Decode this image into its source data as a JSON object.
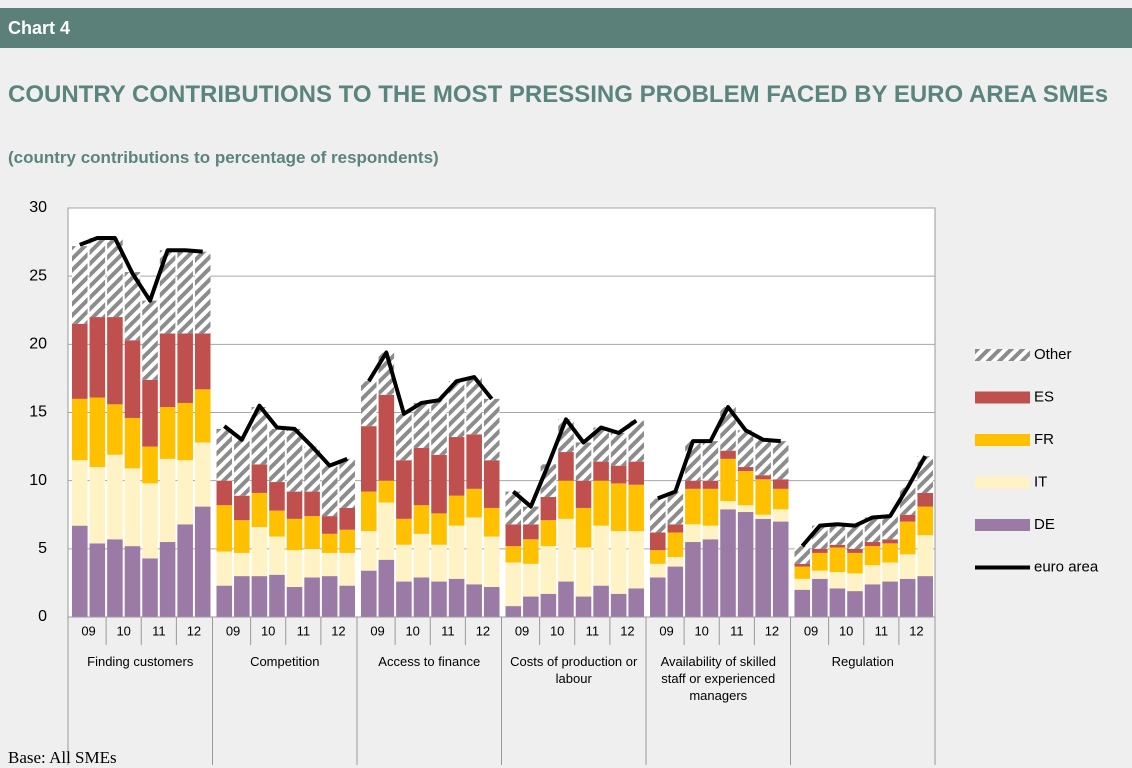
{
  "header": "Chart 4",
  "footnote": "Base: All SMEs",
  "chart_data": {
    "type": "bar",
    "stacked": true,
    "title": "COUNTRY CONTRIBUTIONS TO THE MOST PRESSING PROBLEM FACED BY EURO AREA SMEs",
    "subtitle": "(country contributions to percentage of respondents)",
    "ylim": [
      0,
      30
    ],
    "yticks": [
      0,
      5,
      10,
      15,
      20,
      25,
      30
    ],
    "grid": true,
    "periods": [
      "09",
      "10",
      "11",
      "12"
    ],
    "series": [
      {
        "name": "DE",
        "color": "#9b7ba5"
      },
      {
        "name": "IT",
        "color": "#fff2c4"
      },
      {
        "name": "FR",
        "color": "#ffc000"
      },
      {
        "name": "ES",
        "color": "#c0504d"
      },
      {
        "name": "Other",
        "color": "#8c8c8c",
        "hatch": true
      }
    ],
    "line": {
      "name": "euro area",
      "color": "#000000"
    },
    "groups": [
      {
        "label": "Finding customers",
        "values": [
          [
            6.7,
            5.4,
            5.7,
            5.2,
            4.3,
            5.5,
            6.8,
            8.1
          ],
          [
            4.8,
            5.6,
            6.2,
            5.7,
            5.5,
            6.1,
            4.7,
            4.7
          ],
          [
            4.5,
            5.1,
            3.7,
            3.7,
            2.7,
            3.8,
            4.2,
            3.9
          ],
          [
            5.5,
            5.9,
            6.4,
            5.7,
            4.9,
            5.4,
            5.1,
            4.1
          ],
          [
            5.7,
            5.8,
            5.8,
            5.0,
            5.8,
            6.1,
            6.1,
            6.0
          ]
        ],
        "line": [
          27.3,
          27.8,
          27.8,
          25.2,
          23.2,
          26.9,
          26.9,
          26.8
        ]
      },
      {
        "label": "Competition",
        "values": [
          [
            2.3,
            3.0,
            3.0,
            3.1,
            2.2,
            2.9,
            3.0,
            2.3
          ],
          [
            2.5,
            1.7,
            3.6,
            2.8,
            2.7,
            2.1,
            1.7,
            2.4
          ],
          [
            3.4,
            2.4,
            2.5,
            1.9,
            2.3,
            2.4,
            1.4,
            1.7
          ],
          [
            1.8,
            1.8,
            2.1,
            2.1,
            2.0,
            1.8,
            1.3,
            1.6
          ],
          [
            3.8,
            4.1,
            4.2,
            3.9,
            4.6,
            3.3,
            3.7,
            3.6
          ]
        ],
        "line": [
          14.0,
          13.0,
          15.5,
          13.9,
          13.8,
          12.5,
          11.1,
          11.6
        ]
      },
      {
        "label": "Access to finance",
        "values": [
          [
            3.4,
            4.2,
            2.6,
            2.9,
            2.6,
            2.8,
            2.4,
            2.2
          ],
          [
            2.9,
            4.2,
            2.7,
            3.2,
            2.7,
            3.9,
            4.9,
            3.7
          ],
          [
            2.9,
            1.6,
            1.9,
            2.1,
            2.3,
            2.2,
            2.1,
            2.1
          ],
          [
            4.8,
            6.3,
            4.3,
            4.2,
            4.3,
            4.3,
            4.0,
            3.5
          ],
          [
            3.3,
            3.1,
            3.4,
            3.3,
            4.0,
            4.1,
            4.2,
            4.5
          ]
        ],
        "line": [
          17.3,
          19.4,
          14.9,
          15.7,
          15.9,
          17.3,
          17.6,
          16.0
        ]
      },
      {
        "label": "Costs of production or labour",
        "values": [
          [
            0.8,
            1.5,
            1.7,
            2.6,
            1.5,
            2.3,
            1.7,
            2.1
          ],
          [
            3.2,
            2.4,
            3.5,
            4.6,
            3.6,
            4.4,
            4.6,
            4.2
          ],
          [
            1.2,
            1.8,
            1.9,
            2.8,
            2.9,
            3.3,
            3.5,
            3.4
          ],
          [
            1.6,
            1.1,
            1.7,
            2.1,
            2.0,
            1.4,
            1.3,
            1.7
          ],
          [
            2.4,
            1.3,
            2.4,
            2.4,
            2.8,
            2.5,
            2.4,
            3.0
          ]
        ],
        "line": [
          9.2,
          8.1,
          11.2,
          14.5,
          12.8,
          13.9,
          13.5,
          14.4
        ]
      },
      {
        "label": "Availability of skilled staff or experienced managers",
        "values": [
          [
            2.9,
            3.7,
            5.5,
            5.7,
            7.9,
            7.7,
            7.2,
            7.0
          ],
          [
            1.0,
            0.7,
            1.3,
            1.0,
            0.6,
            0.5,
            0.3,
            0.9
          ],
          [
            1.0,
            1.8,
            2.6,
            2.7,
            3.1,
            2.5,
            2.6,
            1.5
          ],
          [
            1.3,
            0.6,
            0.6,
            0.6,
            0.6,
            0.3,
            0.3,
            0.7
          ],
          [
            2.5,
            2.4,
            2.9,
            2.9,
            3.2,
            2.7,
            2.6,
            2.8
          ]
        ],
        "line": [
          8.7,
          9.2,
          12.9,
          12.9,
          15.4,
          13.7,
          13.0,
          12.9
        ]
      },
      {
        "label": "Regulation",
        "values": [
          [
            2.0,
            2.8,
            2.1,
            1.9,
            2.4,
            2.6,
            2.8,
            3.0
          ],
          [
            0.8,
            0.6,
            1.2,
            1.3,
            1.4,
            1.4,
            1.8,
            3.0
          ],
          [
            0.9,
            1.3,
            1.8,
            1.5,
            1.4,
            1.4,
            2.4,
            2.1
          ],
          [
            0.2,
            0.3,
            0.2,
            0.3,
            0.3,
            0.3,
            0.5,
            1.0
          ],
          [
            1.3,
            1.7,
            1.5,
            1.7,
            1.8,
            1.7,
            2.0,
            2.7
          ]
        ],
        "line": [
          5.2,
          6.7,
          6.8,
          6.7,
          7.3,
          7.4,
          9.5,
          11.8
        ]
      }
    ]
  }
}
